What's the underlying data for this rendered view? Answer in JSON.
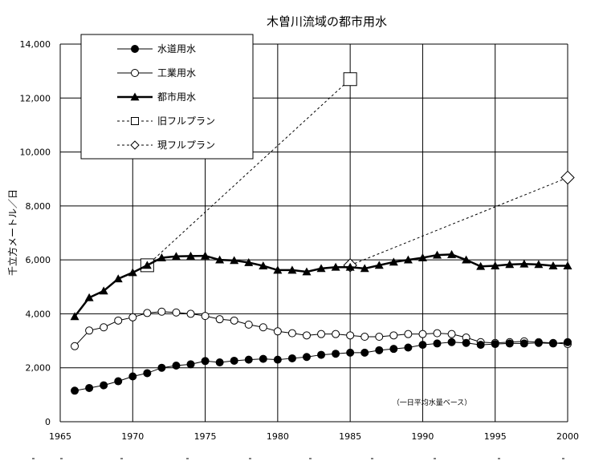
{
  "chart_data": {
    "type": "line",
    "title": "木曽川流域の都市用水",
    "xlabel": "",
    "ylabel": "千立方メートル／日",
    "xlim": [
      1965,
      2000
    ],
    "ylim": [
      0,
      14000
    ],
    "x_ticks": [
      1965,
      1970,
      1975,
      1980,
      1985,
      1990,
      1995,
      2000
    ],
    "y_ticks": [
      0,
      2000,
      4000,
      6000,
      8000,
      10000,
      12000,
      14000
    ],
    "x_tick_labels": [
      "1965",
      "1970",
      "1975",
      "1980",
      "1985",
      "1990",
      "1995",
      "2000"
    ],
    "y_tick_labels": [
      "0",
      "2,000",
      "4,000",
      "6,000",
      "8,000",
      "10,000",
      "12,000",
      "14,000"
    ],
    "grid": true,
    "legend_position": "top-left",
    "annotation": "（一日平均水量ベース）",
    "series": [
      {
        "name": "水道用水",
        "marker": "filled-circle",
        "line": "solid-thin",
        "x": [
          1966,
          1967,
          1968,
          1969,
          1970,
          1971,
          1972,
          1973,
          1974,
          1975,
          1976,
          1977,
          1978,
          1979,
          1980,
          1981,
          1982,
          1983,
          1984,
          1985,
          1986,
          1987,
          1988,
          1989,
          1990,
          1991,
          1992,
          1993,
          1994,
          1995,
          1996,
          1997,
          1998,
          1999,
          2000
        ],
        "values": [
          1150,
          1250,
          1350,
          1500,
          1680,
          1800,
          2000,
          2080,
          2130,
          2250,
          2200,
          2260,
          2300,
          2330,
          2300,
          2350,
          2400,
          2480,
          2520,
          2560,
          2560,
          2650,
          2700,
          2750,
          2850,
          2900,
          2950,
          2920,
          2850,
          2880,
          2900,
          2900,
          2920,
          2900,
          2950
        ]
      },
      {
        "name": "工業用水",
        "marker": "open-circle",
        "line": "solid-thin",
        "x": [
          1966,
          1967,
          1968,
          1969,
          1970,
          1971,
          1972,
          1973,
          1974,
          1975,
          1976,
          1977,
          1978,
          1979,
          1980,
          1981,
          1982,
          1983,
          1984,
          1985,
          1986,
          1987,
          1988,
          1989,
          1990,
          1991,
          1992,
          1993,
          1994,
          1995,
          1996,
          1997,
          1998,
          1999,
          2000
        ],
        "values": [
          2800,
          3380,
          3500,
          3750,
          3870,
          4030,
          4080,
          4050,
          4000,
          3920,
          3800,
          3750,
          3600,
          3500,
          3350,
          3280,
          3200,
          3250,
          3250,
          3200,
          3150,
          3150,
          3200,
          3250,
          3250,
          3280,
          3250,
          3120,
          2950,
          2920,
          2950,
          2980,
          2950,
          2920,
          2880
        ]
      },
      {
        "name": "都市用水",
        "marker": "filled-triangle",
        "line": "solid-thick",
        "x": [
          1966,
          1967,
          1968,
          1969,
          1970,
          1971,
          1972,
          1973,
          1974,
          1975,
          1976,
          1977,
          1978,
          1979,
          1980,
          1981,
          1982,
          1983,
          1984,
          1985,
          1986,
          1987,
          1988,
          1989,
          1990,
          1991,
          1992,
          1993,
          1994,
          1995,
          1996,
          1997,
          1998,
          1999,
          2000
        ],
        "values": [
          3900,
          4600,
          4850,
          5300,
          5530,
          5800,
          6080,
          6130,
          6140,
          6150,
          6000,
          5980,
          5900,
          5780,
          5620,
          5620,
          5560,
          5680,
          5730,
          5730,
          5680,
          5800,
          5920,
          6000,
          6080,
          6180,
          6200,
          6000,
          5760,
          5780,
          5830,
          5850,
          5830,
          5780,
          5780
        ]
      },
      {
        "name": "旧フルプラン",
        "marker": "open-square",
        "line": "dashed",
        "x": [
          1971,
          1985
        ],
        "values": [
          5800,
          12700
        ]
      },
      {
        "name": "現フルプラン",
        "marker": "open-diamond",
        "line": "dashed",
        "x": [
          1985,
          2000
        ],
        "values": [
          5800,
          9050
        ]
      }
    ]
  }
}
